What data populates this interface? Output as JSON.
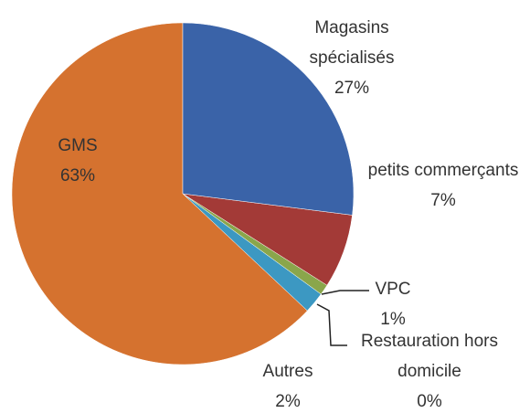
{
  "chart_data": {
    "type": "pie",
    "categories": [
      "Magasins spécialisés",
      "petits commerçants",
      "VPC",
      "Restauration hors domicile",
      "Autres",
      "GMS"
    ],
    "values": [
      27,
      7,
      1,
      0,
      2,
      63
    ],
    "value_labels": [
      "27%",
      "7%",
      "1%",
      "0%",
      "2%",
      "63%"
    ],
    "colors": [
      "#3a63a8",
      "#a33a37",
      "#8aa64b",
      "#6f4f94",
      "#3c98c2",
      "#d5722f"
    ]
  }
}
